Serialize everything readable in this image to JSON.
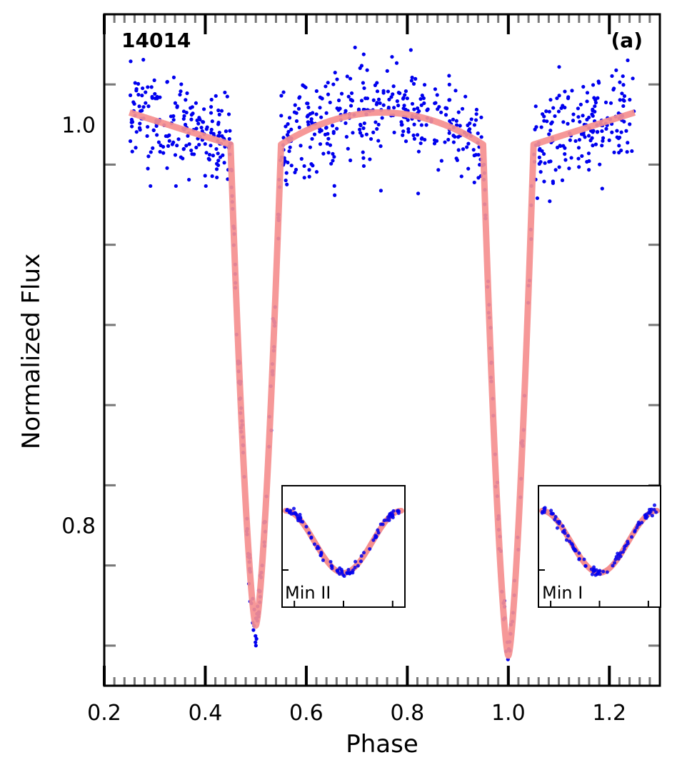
{
  "chart_data": {
    "type": "scatter",
    "object_id": "14014",
    "panel_label": "(a)",
    "xlabel": "Phase",
    "ylabel": "Normalized Flux",
    "xlim": [
      0.2,
      1.3
    ],
    "ylim": [
      0.72,
      1.055
    ],
    "x_ticks": [
      {
        "value": 0.2,
        "label": "0.2"
      },
      {
        "value": 0.4,
        "label": "0.4"
      },
      {
        "value": 0.6,
        "label": "0.6"
      },
      {
        "value": 0.8,
        "label": "0.8"
      },
      {
        "value": 1.0,
        "label": "1.0"
      },
      {
        "value": 1.2,
        "label": "1.2"
      }
    ],
    "y_ticks": [
      {
        "value": 0.8,
        "label": "0.8"
      },
      {
        "value": 1.0,
        "label": "1.0"
      }
    ],
    "series": [
      {
        "name": "observations",
        "kind": "points",
        "color": "#0000ee",
        "phase_range": [
          0.25,
          1.25
        ],
        "scatter_sigma": 0.012
      },
      {
        "name": "model fit",
        "kind": "line",
        "color": "#f58f8f",
        "baseline": {
          "start": 1.006,
          "before_primary_egress": 0.99,
          "before_secondary_ingress": 0.99,
          "max_phase": 0.75,
          "max_value": 1.006
        },
        "secondary_eclipse": {
          "center": 0.5,
          "depth_flux": 0.75,
          "half_width": 0.05
        },
        "primary_eclipse": {
          "center": 1.0,
          "depth_flux": 0.735,
          "half_width": 0.05
        }
      }
    ],
    "insets": [
      {
        "label": "Min II",
        "center_phase": 0.5
      },
      {
        "label": "Min I",
        "center_phase": 1.0
      }
    ]
  },
  "colors": {
    "points": "#0000ee",
    "model": "#f58f8f",
    "axes": "#000000",
    "minor_ticks": "#777777"
  }
}
